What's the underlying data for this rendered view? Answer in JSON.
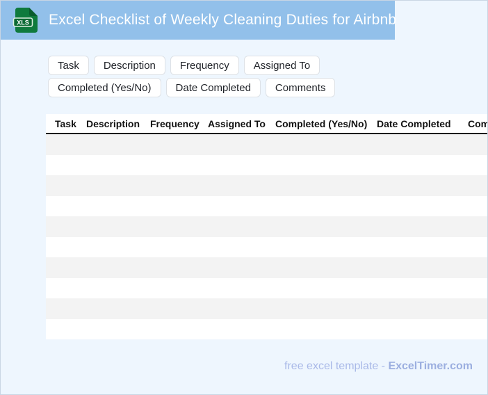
{
  "header": {
    "title": "Excel Checklist of Weekly Cleaning Duties for Airbnb",
    "icon": "xls-file-icon",
    "icon_label": "XLS",
    "band_color": "#92c0ea",
    "icon_green": "#0f7a3d",
    "icon_green_dark": "#0b6a33"
  },
  "chips": [
    "Task",
    "Description",
    "Frequency",
    "Assigned To",
    "Completed (Yes/No)",
    "Date Completed",
    "Comments"
  ],
  "table": {
    "columns": [
      "Task",
      "Description",
      "Frequency",
      "Assigned To",
      "Completed (Yes/No)",
      "Date Completed",
      "Comments"
    ],
    "row_count": 10,
    "rows": [
      [
        "",
        "",
        "",
        "",
        "",
        "",
        ""
      ],
      [
        "",
        "",
        "",
        "",
        "",
        "",
        ""
      ],
      [
        "",
        "",
        "",
        "",
        "",
        "",
        ""
      ],
      [
        "",
        "",
        "",
        "",
        "",
        "",
        ""
      ],
      [
        "",
        "",
        "",
        "",
        "",
        "",
        ""
      ],
      [
        "",
        "",
        "",
        "",
        "",
        "",
        ""
      ],
      [
        "",
        "",
        "",
        "",
        "",
        "",
        ""
      ],
      [
        "",
        "",
        "",
        "",
        "",
        "",
        ""
      ],
      [
        "",
        "",
        "",
        "",
        "",
        "",
        ""
      ],
      [
        "",
        "",
        "",
        "",
        "",
        "",
        ""
      ]
    ],
    "stripe_color": "#f3f3f3"
  },
  "footer": {
    "prefix": "free excel template - ",
    "brand": "ExcelTimer.com"
  },
  "colors": {
    "page_background": "#eef6fe",
    "page_border": "#c9d6e4",
    "title_text": "#ffffff",
    "footer_text": "#a9b9e8",
    "footer_brand": "#9cafe0"
  }
}
